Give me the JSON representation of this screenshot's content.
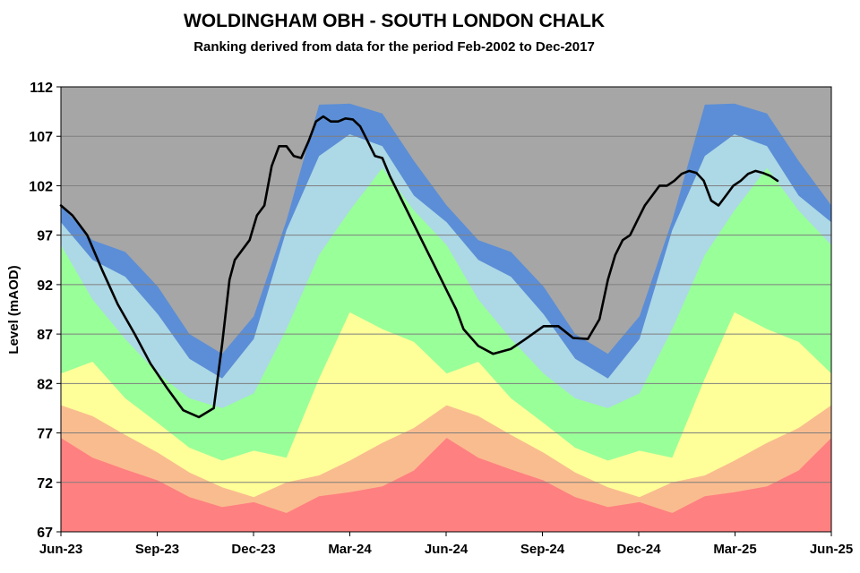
{
  "chart_data": {
    "type": "area",
    "title": "WOLDINGHAM OBH - SOUTH LONDON CHALK",
    "subtitle": "Ranking derived from data for the period Feb-2002 to Dec-2017",
    "ylabel": "Level (mAOD)",
    "xlabel": "",
    "ylim": [
      67,
      112
    ],
    "y_ticks": [
      67,
      72,
      77,
      82,
      87,
      92,
      97,
      102,
      107,
      112
    ],
    "xlim": [
      "2023-06-01",
      "2025-06-01"
    ],
    "x_ticks": [
      "Jun-23",
      "Sep-23",
      "Dec-23",
      "Mar-24",
      "Jun-24",
      "Sep-24",
      "Dec-24",
      "Mar-25",
      "Jun-25"
    ],
    "grid": true,
    "legend": "none",
    "band_dates": [
      "2023-06-01",
      "2023-07-01",
      "2023-08-01",
      "2023-09-01",
      "2023-10-01",
      "2023-11-01",
      "2023-12-01",
      "2024-01-01",
      "2024-02-01",
      "2024-03-01",
      "2024-04-01",
      "2024-05-01",
      "2024-06-01",
      "2024-07-01",
      "2024-08-01",
      "2024-09-01",
      "2024-10-01",
      "2024-11-01",
      "2024-12-01",
      "2025-01-01",
      "2025-02-01",
      "2025-03-01",
      "2025-04-01",
      "2025-05-01",
      "2025-06-01"
    ],
    "bands": [
      {
        "color": "#ff8080",
        "upper": [
          76.5,
          74.5,
          73.3,
          72.2,
          70.5,
          69.5,
          70.0,
          68.9,
          70.6,
          71.0,
          71.6,
          73.2,
          76.5,
          74.5,
          73.3,
          72.2,
          70.5,
          69.5,
          70.0,
          68.9,
          70.6,
          71.0,
          71.6,
          73.2,
          76.5
        ]
      },
      {
        "color": "#f9bc8f",
        "upper": [
          79.8,
          78.7,
          76.8,
          75.0,
          73.0,
          71.5,
          70.5,
          72.0,
          72.7,
          74.2,
          76.0,
          77.5,
          79.8,
          78.7,
          76.8,
          75.0,
          73.0,
          71.5,
          70.5,
          72.0,
          72.7,
          74.2,
          76.0,
          77.5,
          79.8
        ]
      },
      {
        "color": "#ffff99",
        "upper": [
          83.0,
          84.2,
          80.5,
          78.0,
          75.5,
          74.2,
          75.2,
          74.5,
          82.5,
          89.2,
          87.5,
          86.2,
          83.0,
          84.2,
          80.5,
          78.0,
          75.5,
          74.2,
          75.2,
          74.5,
          82.5,
          89.2,
          87.5,
          86.2,
          83.0
        ]
      },
      {
        "color": "#99ff99",
        "upper": [
          96.0,
          90.5,
          86.5,
          83.0,
          80.5,
          79.5,
          81.0,
          87.5,
          95.0,
          99.5,
          103.8,
          99.5,
          96.0,
          90.5,
          86.5,
          83.0,
          80.5,
          79.5,
          81.0,
          87.5,
          95.0,
          99.5,
          103.8,
          99.5,
          96.0
        ]
      },
      {
        "color": "#add8e6",
        "upper": [
          98.3,
          94.5,
          92.8,
          89.0,
          84.5,
          82.5,
          86.5,
          97.5,
          105.0,
          107.2,
          106.0,
          101.0,
          98.3,
          94.5,
          92.8,
          89.0,
          84.5,
          82.5,
          86.5,
          97.5,
          105.0,
          107.2,
          106.0,
          101.0,
          98.3
        ]
      },
      {
        "color": "#5b8ed6",
        "upper": [
          100.0,
          96.5,
          95.3,
          91.8,
          87.0,
          85.0,
          88.8,
          98.5,
          110.2,
          110.3,
          109.3,
          104.5,
          100.0,
          96.5,
          95.3,
          91.8,
          87.0,
          85.0,
          88.8,
          98.5,
          110.2,
          110.3,
          109.3,
          104.5,
          100.0
        ]
      }
    ],
    "background_color": "#a6a6a6",
    "series": [
      {
        "type": "line",
        "color": "#000000",
        "x": [
          "2023-06-01",
          "2023-06-12",
          "2023-06-26",
          "2023-07-10",
          "2023-07-25",
          "2023-08-10",
          "2023-08-25",
          "2023-09-10",
          "2023-09-25",
          "2023-10-10",
          "2023-10-24",
          "2023-11-01",
          "2023-11-08",
          "2023-11-13",
          "2023-11-20",
          "2023-11-27",
          "2023-12-04",
          "2023-12-11",
          "2023-12-18",
          "2023-12-25",
          "2024-01-01",
          "2024-01-08",
          "2024-01-15",
          "2024-01-22",
          "2024-01-29",
          "2024-02-05",
          "2024-02-12",
          "2024-02-19",
          "2024-02-26",
          "2024-03-04",
          "2024-03-11",
          "2024-03-18",
          "2024-03-25",
          "2024-04-01",
          "2024-04-08",
          "2024-04-22",
          "2024-05-06",
          "2024-05-20",
          "2024-06-03",
          "2024-06-10",
          "2024-06-17",
          "2024-07-01",
          "2024-07-15",
          "2024-08-01",
          "2024-08-15",
          "2024-09-01",
          "2024-09-15",
          "2024-09-29",
          "2024-10-13",
          "2024-10-24",
          "2024-11-01",
          "2024-11-08",
          "2024-11-15",
          "2024-11-22",
          "2024-11-29",
          "2024-12-06",
          "2024-12-13",
          "2024-12-20",
          "2024-12-27",
          "2025-01-03",
          "2025-01-10",
          "2025-01-17",
          "2025-01-24",
          "2025-01-31",
          "2025-02-07",
          "2025-02-14",
          "2025-02-21",
          "2025-02-28",
          "2025-03-07",
          "2025-03-14",
          "2025-03-21",
          "2025-03-28",
          "2025-04-04",
          "2025-04-11"
        ],
        "y": [
          100.0,
          99.0,
          97.0,
          93.5,
          90.0,
          87.0,
          84.0,
          81.5,
          79.3,
          78.6,
          79.5,
          86.0,
          92.5,
          94.5,
          95.5,
          96.5,
          99.0,
          100.0,
          104.0,
          106.0,
          106.0,
          105.0,
          104.8,
          106.5,
          108.5,
          109.0,
          108.5,
          108.5,
          108.8,
          108.7,
          108.0,
          106.5,
          105.0,
          104.8,
          103.0,
          100.0,
          97.0,
          94.0,
          91.0,
          89.5,
          87.5,
          85.8,
          85.0,
          85.5,
          86.5,
          87.8,
          87.8,
          86.6,
          86.5,
          88.5,
          92.5,
          95.0,
          96.5,
          97.0,
          98.5,
          100.0,
          101.0,
          102.0,
          102.0,
          102.5,
          103.2,
          103.5,
          103.3,
          102.5,
          100.5,
          100.0,
          101.0,
          102.0,
          102.5,
          103.2,
          103.5,
          103.3,
          103.0,
          102.5
        ]
      }
    ]
  }
}
